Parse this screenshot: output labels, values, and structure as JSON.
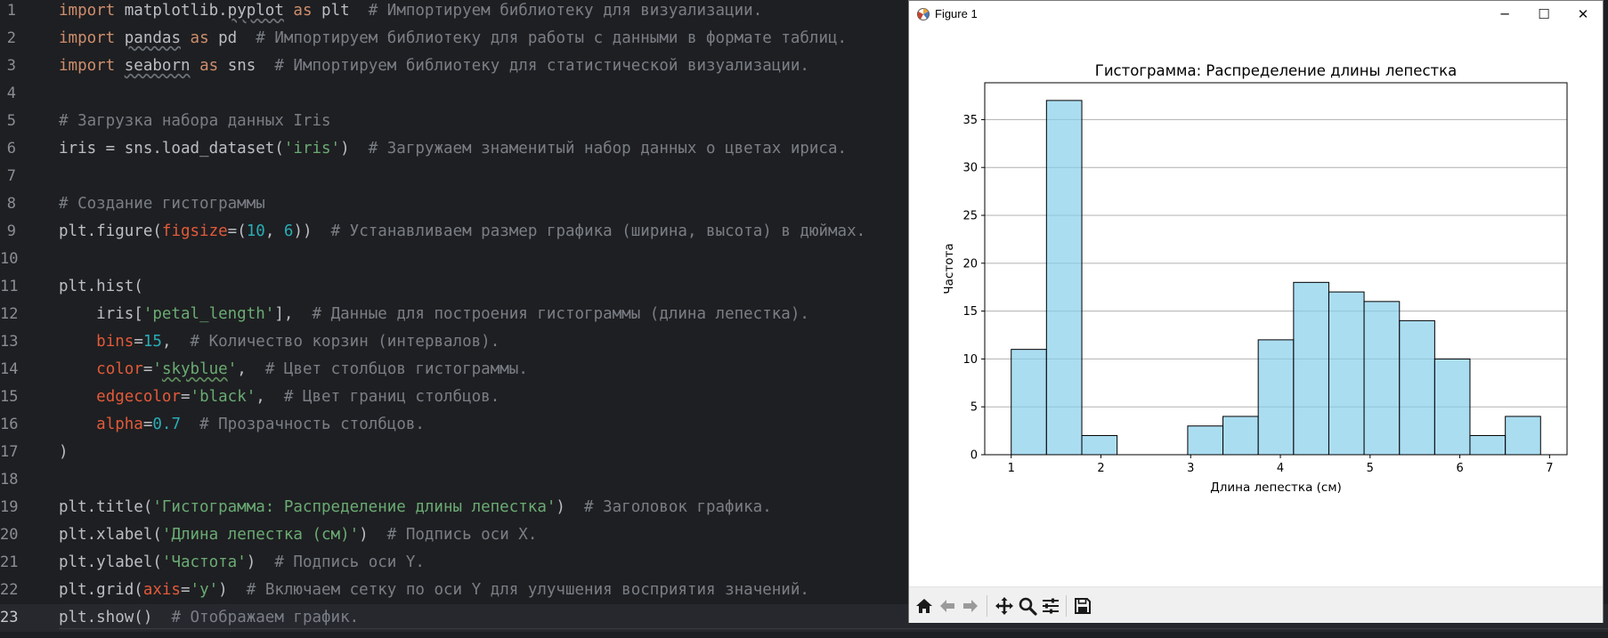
{
  "editor": {
    "lines": [
      {
        "n": "1",
        "tokens": [
          {
            "c": "kw",
            "t": "import"
          },
          {
            "t": " matplotlib."
          },
          {
            "c": "und",
            "t": "pyplot"
          },
          {
            "t": " "
          },
          {
            "c": "kw",
            "t": "as"
          },
          {
            "t": " plt  "
          },
          {
            "c": "cm",
            "t": "# Импортируем библиотеку для визуализации."
          }
        ]
      },
      {
        "n": "2",
        "tokens": [
          {
            "c": "kw",
            "t": "import"
          },
          {
            "t": " "
          },
          {
            "c": "und",
            "t": "pandas"
          },
          {
            "t": " "
          },
          {
            "c": "kw",
            "t": "as"
          },
          {
            "t": " pd  "
          },
          {
            "c": "cm",
            "t": "# Импортируем библиотеку для работы с данными в формате таблиц."
          }
        ]
      },
      {
        "n": "3",
        "tokens": [
          {
            "c": "kw",
            "t": "import"
          },
          {
            "t": " "
          },
          {
            "c": "und",
            "t": "seaborn"
          },
          {
            "t": " "
          },
          {
            "c": "kw",
            "t": "as"
          },
          {
            "t": " sns  "
          },
          {
            "c": "cm",
            "t": "# Импортируем библиотеку для статистической визуализации."
          }
        ]
      },
      {
        "n": "4",
        "tokens": []
      },
      {
        "n": "5",
        "tokens": [
          {
            "c": "cm",
            "t": "# Загрузка набора данных Iris"
          }
        ]
      },
      {
        "n": "6",
        "tokens": [
          {
            "t": "iris = sns.load_dataset("
          },
          {
            "c": "str",
            "t": "'iris'"
          },
          {
            "t": ")  "
          },
          {
            "c": "cm",
            "t": "# Загружаем знаменитый набор данных о цветах ириса."
          }
        ]
      },
      {
        "n": "7",
        "tokens": []
      },
      {
        "n": "8",
        "tokens": [
          {
            "c": "cm",
            "t": "# Создание гистограммы"
          }
        ]
      },
      {
        "n": "9",
        "tokens": [
          {
            "t": "plt.figure("
          },
          {
            "c": "prm",
            "t": "figsize"
          },
          {
            "t": "=("
          },
          {
            "c": "num",
            "t": "10"
          },
          {
            "t": ", "
          },
          {
            "c": "num",
            "t": "6"
          },
          {
            "t": "))  "
          },
          {
            "c": "cm",
            "t": "# Устанавливаем размер графика (ширина, высота) в дюймах."
          }
        ]
      },
      {
        "n": "10",
        "tokens": []
      },
      {
        "n": "11",
        "tokens": [
          {
            "t": "plt.hist("
          }
        ]
      },
      {
        "n": "12",
        "tokens": [
          {
            "t": "    iris["
          },
          {
            "c": "str",
            "t": "'petal_length'"
          },
          {
            "t": "],  "
          },
          {
            "c": "cm",
            "t": "# Данные для построения гистограммы (длина лепестка)."
          }
        ]
      },
      {
        "n": "13",
        "tokens": [
          {
            "t": "    "
          },
          {
            "c": "prm",
            "t": "bins"
          },
          {
            "t": "="
          },
          {
            "c": "num",
            "t": "15"
          },
          {
            "t": ",  "
          },
          {
            "c": "cm",
            "t": "# Количество корзин (интервалов)."
          }
        ]
      },
      {
        "n": "14",
        "tokens": [
          {
            "t": "    "
          },
          {
            "c": "prm",
            "t": "color"
          },
          {
            "t": "="
          },
          {
            "c": "str",
            "t": "'"
          },
          {
            "c": "str und-g",
            "t": "skyblue"
          },
          {
            "c": "str",
            "t": "'"
          },
          {
            "t": ",  "
          },
          {
            "c": "cm",
            "t": "# Цвет столбцов гистограммы."
          }
        ]
      },
      {
        "n": "15",
        "tokens": [
          {
            "t": "    "
          },
          {
            "c": "prm",
            "t": "edgecolor"
          },
          {
            "t": "="
          },
          {
            "c": "str",
            "t": "'black'"
          },
          {
            "t": ",  "
          },
          {
            "c": "cm",
            "t": "# Цвет границ столбцов."
          }
        ]
      },
      {
        "n": "16",
        "tokens": [
          {
            "t": "    "
          },
          {
            "c": "prm",
            "t": "alpha"
          },
          {
            "t": "="
          },
          {
            "c": "num",
            "t": "0.7"
          },
          {
            "t": "  "
          },
          {
            "c": "cm",
            "t": "# Прозрачность столбцов."
          }
        ]
      },
      {
        "n": "17",
        "tokens": [
          {
            "t": ")"
          }
        ]
      },
      {
        "n": "18",
        "tokens": []
      },
      {
        "n": "19",
        "tokens": [
          {
            "t": "plt.title("
          },
          {
            "c": "str",
            "t": "'Гистограмма: Распределение длины лепестка'"
          },
          {
            "t": ")  "
          },
          {
            "c": "cm",
            "t": "# Заголовок графика."
          }
        ]
      },
      {
        "n": "20",
        "tokens": [
          {
            "t": "plt.xlabel("
          },
          {
            "c": "str",
            "t": "'Длина лепестка (см)'"
          },
          {
            "t": ")  "
          },
          {
            "c": "cm",
            "t": "# Подпись оси X."
          }
        ]
      },
      {
        "n": "21",
        "tokens": [
          {
            "t": "plt.ylabel("
          },
          {
            "c": "str",
            "t": "'Частота'"
          },
          {
            "t": ")  "
          },
          {
            "c": "cm",
            "t": "# Подпись оси Y."
          }
        ]
      },
      {
        "n": "22",
        "tokens": [
          {
            "t": "plt.grid("
          },
          {
            "c": "prm",
            "t": "axis"
          },
          {
            "t": "="
          },
          {
            "c": "str",
            "t": "'y'"
          },
          {
            "t": ")  "
          },
          {
            "c": "cm",
            "t": "# Включаем сетку по оси Y для улучшения восприятия значений."
          }
        ]
      },
      {
        "n": "23",
        "tokens": [
          {
            "t": "plt.show()  "
          },
          {
            "c": "cm",
            "t": "# Отображаем график."
          }
        ]
      }
    ],
    "current_line": 23
  },
  "figure_window": {
    "title": "Figure 1",
    "controls": {
      "minimize": "─",
      "maximize": "☐",
      "close": "✕"
    },
    "toolbar": [
      {
        "icon": "home-icon",
        "kind": "button"
      },
      {
        "icon": "back-arrow-icon",
        "kind": "button"
      },
      {
        "icon": "forward-arrow-icon",
        "kind": "button"
      },
      {
        "icon": "pan-icon",
        "kind": "button"
      },
      {
        "icon": "zoom-icon",
        "kind": "button"
      },
      {
        "icon": "configure-subplots-icon",
        "kind": "button"
      },
      {
        "icon": "save-icon",
        "kind": "button"
      }
    ]
  },
  "chart_data": {
    "type": "bar",
    "title": "Гистограмма: Распределение длины лепестка",
    "xlabel": "Длина лепестка (см)",
    "ylabel": "Частота",
    "bin_edges": [
      1.0,
      1.393,
      1.787,
      2.18,
      2.573,
      2.967,
      3.36,
      3.753,
      4.147,
      4.54,
      4.933,
      5.327,
      5.72,
      6.113,
      6.507,
      6.9
    ],
    "values": [
      11,
      37,
      2,
      0,
      0,
      3,
      4,
      12,
      18,
      17,
      16,
      14,
      10,
      2,
      4
    ],
    "xlim": [
      0.705,
      7.195
    ],
    "ylim": [
      0,
      38.85
    ],
    "xticks": [
      "1",
      "2",
      "3",
      "4",
      "5",
      "6",
      "7"
    ],
    "yticks": [
      "0",
      "5",
      "10",
      "15",
      "20",
      "25",
      "30",
      "35"
    ],
    "grid": "y",
    "bar_color": "#87ceeb",
    "bar_alpha": 0.7,
    "edge_color": "#000000"
  }
}
